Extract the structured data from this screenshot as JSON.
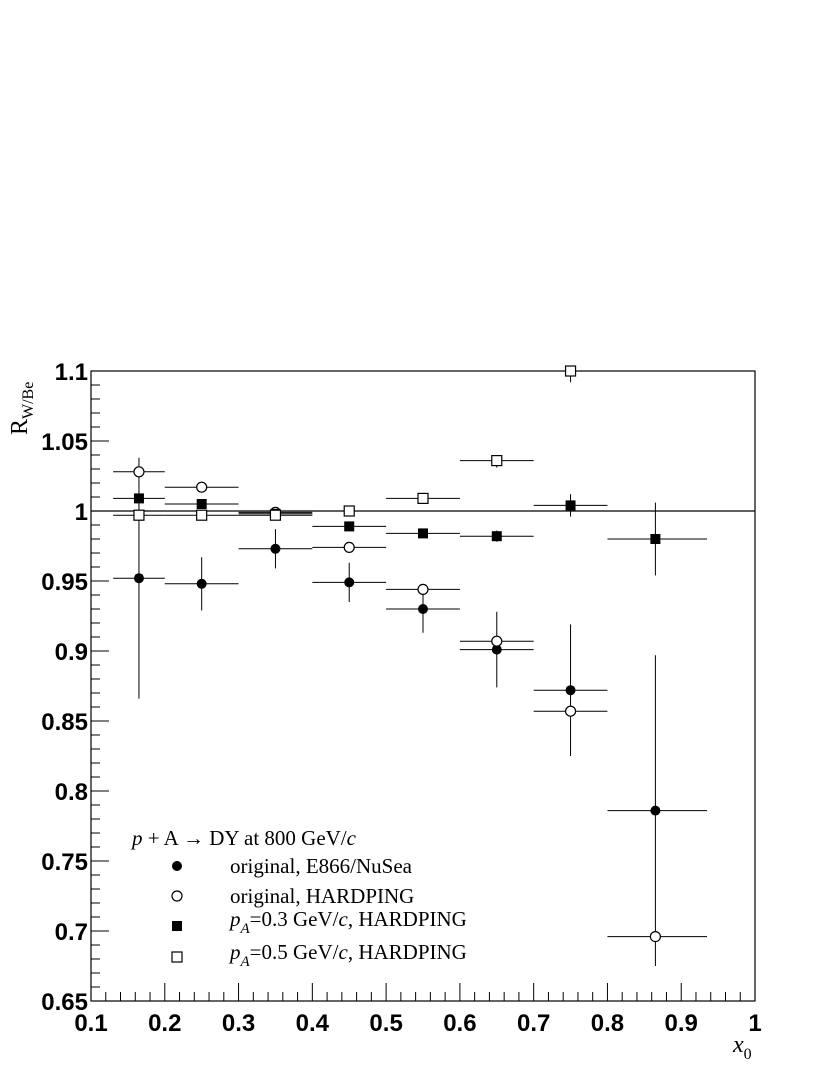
{
  "chart_data": {
    "type": "scatter",
    "title": "",
    "xlabel": "x",
    "xlabel_sub": "0",
    "ylabel": "R",
    "ylabel_sub": "W/Be",
    "xlim": [
      0.1,
      1.0
    ],
    "ylim": [
      0.65,
      1.1
    ],
    "xticks": [
      "0.1",
      "0.2",
      "0.3",
      "0.4",
      "0.5",
      "0.6",
      "0.7",
      "0.8",
      "0.9",
      "1"
    ],
    "yticks": [
      "0.65",
      "0.7",
      "0.75",
      "0.8",
      "0.85",
      "0.9",
      "0.95",
      "1",
      "1.05",
      "1.1"
    ],
    "reference_line": 1.0,
    "grid": false,
    "legend": {
      "placement": "bottom-left",
      "header": {
        "p": "p",
        "mid": " + A → DY at 800 GeV/",
        "c": "c"
      },
      "entries": [
        {
          "marker": "filled-circle",
          "pre": "",
          "sub": "",
          "mid": "original, E866/NuSea",
          "c": "",
          "post": ""
        },
        {
          "marker": "open-circle",
          "pre": "",
          "sub": "",
          "mid": "original, HARDPING",
          "c": "",
          "post": ""
        },
        {
          "marker": "filled-square",
          "pre": "p",
          "sub": "A",
          "mid": "=0.3 GeV/",
          "c": "c",
          "post": ", HARDPING"
        },
        {
          "marker": "open-square",
          "pre": "p",
          "sub": "A",
          "mid": "=0.5 GeV/",
          "c": "c",
          "post": ", HARDPING"
        }
      ]
    },
    "series": [
      {
        "name": "original, E866/NuSea",
        "marker": "filled-circle",
        "points": [
          {
            "x": 0.165,
            "xlo": 0.13,
            "xhi": 0.2,
            "y": 0.952,
            "ylo": 0.866,
            "yhi": 1.038
          },
          {
            "x": 0.25,
            "xlo": 0.2,
            "xhi": 0.3,
            "y": 0.948,
            "ylo": 0.929,
            "yhi": 0.967
          },
          {
            "x": 0.35,
            "xlo": 0.3,
            "xhi": 0.4,
            "y": 0.973,
            "ylo": 0.959,
            "yhi": 0.987
          },
          {
            "x": 0.45,
            "xlo": 0.4,
            "xhi": 0.5,
            "y": 0.949,
            "ylo": 0.935,
            "yhi": 0.963
          },
          {
            "x": 0.55,
            "xlo": 0.5,
            "xhi": 0.6,
            "y": 0.93,
            "ylo": 0.913,
            "yhi": 0.947
          },
          {
            "x": 0.65,
            "xlo": 0.6,
            "xhi": 0.7,
            "y": 0.901,
            "ylo": 0.874,
            "yhi": 0.928
          },
          {
            "x": 0.75,
            "xlo": 0.7,
            "xhi": 0.8,
            "y": 0.872,
            "ylo": 0.825,
            "yhi": 0.919
          },
          {
            "x": 0.865,
            "xlo": 0.8,
            "xhi": 0.935,
            "y": 0.786,
            "ylo": 0.675,
            "yhi": 0.897
          }
        ]
      },
      {
        "name": "original, HARDPING",
        "marker": "open-circle",
        "points": [
          {
            "x": 0.165,
            "xlo": 0.13,
            "xhi": 0.2,
            "y": 1.028,
            "ylo": 1.028,
            "yhi": 1.028
          },
          {
            "x": 0.25,
            "xlo": 0.2,
            "xhi": 0.3,
            "y": 1.017,
            "ylo": 1.017,
            "yhi": 1.017
          },
          {
            "x": 0.35,
            "xlo": 0.3,
            "xhi": 0.4,
            "y": 0.999,
            "ylo": 0.999,
            "yhi": 0.999
          },
          {
            "x": 0.45,
            "xlo": 0.4,
            "xhi": 0.5,
            "y": 0.974,
            "ylo": 0.974,
            "yhi": 0.974
          },
          {
            "x": 0.55,
            "xlo": 0.5,
            "xhi": 0.6,
            "y": 0.944,
            "ylo": 0.944,
            "yhi": 0.944
          },
          {
            "x": 0.65,
            "xlo": 0.6,
            "xhi": 0.7,
            "y": 0.907,
            "ylo": 0.907,
            "yhi": 0.907
          },
          {
            "x": 0.75,
            "xlo": 0.7,
            "xhi": 0.8,
            "y": 0.857,
            "ylo": 0.857,
            "yhi": 0.857
          },
          {
            "x": 0.865,
            "xlo": 0.8,
            "xhi": 0.935,
            "y": 0.696,
            "ylo": 0.696,
            "yhi": 0.696
          }
        ]
      },
      {
        "name": "pA=0.3 GeV/c, HARDPING",
        "marker": "filled-square",
        "points": [
          {
            "x": 0.165,
            "xlo": 0.13,
            "xhi": 0.2,
            "y": 1.009,
            "ylo": 1.009,
            "yhi": 1.009
          },
          {
            "x": 0.25,
            "xlo": 0.2,
            "xhi": 0.3,
            "y": 1.005,
            "ylo": 1.005,
            "yhi": 1.005
          },
          {
            "x": 0.35,
            "xlo": 0.3,
            "xhi": 0.4,
            "y": 0.998,
            "ylo": 0.998,
            "yhi": 0.998
          },
          {
            "x": 0.45,
            "xlo": 0.4,
            "xhi": 0.5,
            "y": 0.989,
            "ylo": 0.989,
            "yhi": 0.989
          },
          {
            "x": 0.55,
            "xlo": 0.5,
            "xhi": 0.6,
            "y": 0.984,
            "ylo": 0.984,
            "yhi": 0.984
          },
          {
            "x": 0.65,
            "xlo": 0.6,
            "xhi": 0.7,
            "y": 0.982,
            "ylo": 0.978,
            "yhi": 0.986
          },
          {
            "x": 0.75,
            "xlo": 0.7,
            "xhi": 0.8,
            "y": 1.004,
            "ylo": 0.996,
            "yhi": 1.012
          },
          {
            "x": 0.865,
            "xlo": 0.8,
            "xhi": 0.935,
            "y": 0.98,
            "ylo": 0.954,
            "yhi": 1.006
          }
        ]
      },
      {
        "name": "pA=0.5 GeV/c, HARDPING",
        "marker": "open-square",
        "points": [
          {
            "x": 0.165,
            "xlo": 0.13,
            "xhi": 0.2,
            "y": 0.997,
            "ylo": 0.997,
            "yhi": 0.997
          },
          {
            "x": 0.25,
            "xlo": 0.2,
            "xhi": 0.3,
            "y": 0.997,
            "ylo": 0.997,
            "yhi": 0.997
          },
          {
            "x": 0.35,
            "xlo": 0.3,
            "xhi": 0.4,
            "y": 0.997,
            "ylo": 0.997,
            "yhi": 0.997
          },
          {
            "x": 0.45,
            "xlo": 0.4,
            "xhi": 0.5,
            "y": 1.0,
            "ylo": 1.0,
            "yhi": 1.0
          },
          {
            "x": 0.55,
            "xlo": 0.5,
            "xhi": 0.6,
            "y": 1.009,
            "ylo": 1.009,
            "yhi": 1.009
          },
          {
            "x": 0.65,
            "xlo": 0.6,
            "xhi": 0.7,
            "y": 1.036,
            "ylo": 1.031,
            "yhi": 1.036
          },
          {
            "x": 0.75,
            "xlo": 0.7,
            "xhi": 0.8,
            "y": 1.1,
            "ylo": 1.092,
            "yhi": 1.1
          }
        ]
      }
    ]
  }
}
